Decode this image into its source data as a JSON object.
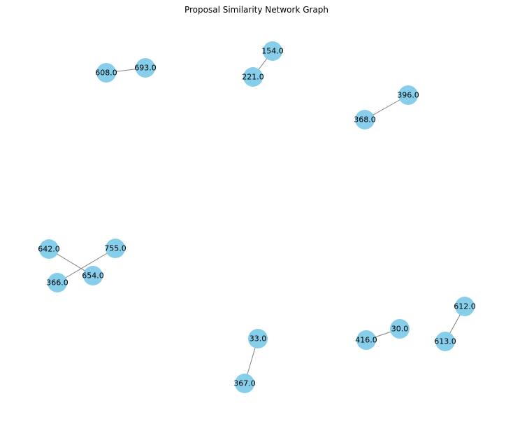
{
  "graph": {
    "title": "Proposal Similarity Network Graph",
    "node_color": "#87ceeb",
    "edge_color": "#808080",
    "nodes": [
      {
        "id": "608",
        "label": "608.0"
      },
      {
        "id": "693",
        "label": "693.0"
      },
      {
        "id": "154",
        "label": "154.0"
      },
      {
        "id": "221",
        "label": "221.0"
      },
      {
        "id": "396",
        "label": "396.0"
      },
      {
        "id": "368",
        "label": "368.0"
      },
      {
        "id": "642",
        "label": "642.0"
      },
      {
        "id": "755",
        "label": "755.0"
      },
      {
        "id": "366",
        "label": "366.0"
      },
      {
        "id": "654",
        "label": "654.0"
      },
      {
        "id": "612",
        "label": "612.0"
      },
      {
        "id": "613",
        "label": "613.0"
      },
      {
        "id": "30",
        "label": "30.0"
      },
      {
        "id": "416",
        "label": "416.0"
      },
      {
        "id": "33",
        "label": "33.0"
      },
      {
        "id": "367",
        "label": "367.0"
      }
    ],
    "edges": [
      {
        "source": "608",
        "target": "693"
      },
      {
        "source": "154",
        "target": "221"
      },
      {
        "source": "396",
        "target": "368"
      },
      {
        "source": "642",
        "target": "654"
      },
      {
        "source": "755",
        "target": "366"
      },
      {
        "source": "612",
        "target": "613"
      },
      {
        "source": "30",
        "target": "416"
      },
      {
        "source": "33",
        "target": "367"
      }
    ]
  }
}
